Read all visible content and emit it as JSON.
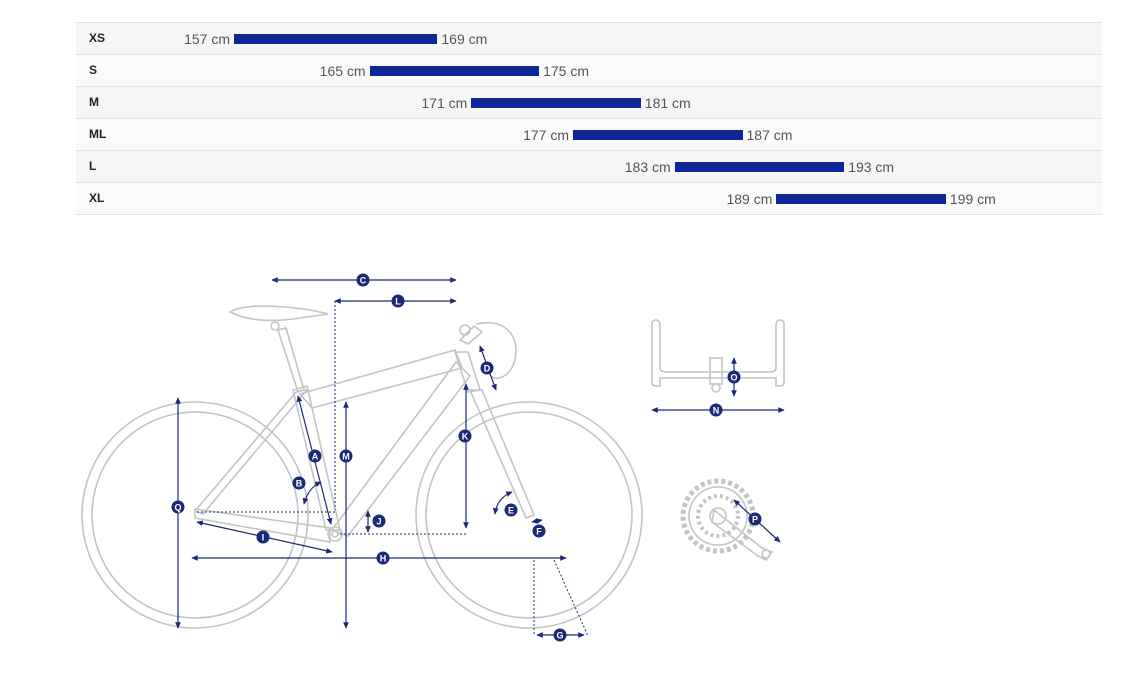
{
  "size_chart": {
    "unit": "cm",
    "rows": [
      {
        "size": "XS",
        "min": 157,
        "max": 169,
        "min_label": "157 cm",
        "max_label": "169 cm"
      },
      {
        "size": "S",
        "min": 165,
        "max": 175,
        "min_label": "165 cm",
        "max_label": "175 cm"
      },
      {
        "size": "M",
        "min": 171,
        "max": 181,
        "min_label": "171 cm",
        "max_label": "181 cm"
      },
      {
        "size": "ML",
        "min": 177,
        "max": 187,
        "min_label": "177 cm",
        "max_label": "187 cm"
      },
      {
        "size": "L",
        "min": 183,
        "max": 193,
        "min_label": "183 cm",
        "max_label": "193 cm"
      },
      {
        "size": "XL",
        "min": 189,
        "max": 199,
        "min_label": "189 cm",
        "max_label": "199 cm"
      }
    ]
  },
  "geometry_labels": [
    "A",
    "B",
    "C",
    "D",
    "E",
    "F",
    "G",
    "H",
    "I",
    "J",
    "K",
    "L",
    "M",
    "N",
    "O",
    "P",
    "Q"
  ],
  "colors": {
    "accent": "#0b2896",
    "outline": "#c4c4c4",
    "marker": "#1a2a78"
  }
}
